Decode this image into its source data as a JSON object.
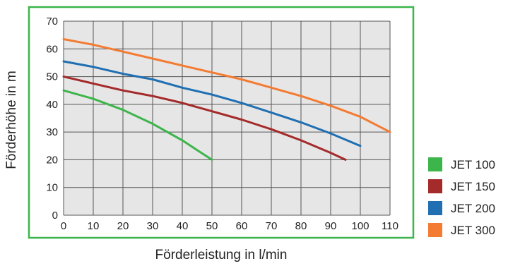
{
  "chart_data": {
    "type": "line",
    "xlabel": "Förderleistung in l/min",
    "ylabel": "Förderhöhe in m",
    "xlim": [
      0,
      110
    ],
    "ylim": [
      0,
      70
    ],
    "x_ticks": [
      "0",
      "10",
      "20",
      "30",
      "40",
      "50",
      "60",
      "70",
      "80",
      "90",
      "100",
      "110"
    ],
    "y_ticks": [
      "0",
      "10",
      "20",
      "30",
      "40",
      "50",
      "60",
      "70"
    ],
    "grid": true,
    "legend_position": "right",
    "frame_color": "#3cb54a",
    "series": [
      {
        "name": "JET 100",
        "color": "#3cb54a",
        "x": [
          0,
          10,
          20,
          30,
          40,
          45,
          50
        ],
        "y": [
          45,
          42,
          38,
          33,
          27,
          23.5,
          20
        ]
      },
      {
        "name": "JET 150",
        "color": "#a52a2a",
        "x": [
          0,
          10,
          20,
          30,
          40,
          50,
          60,
          70,
          80,
          90,
          95
        ],
        "y": [
          50,
          47.5,
          45,
          43,
          40.5,
          37.5,
          34.5,
          31,
          27,
          22.5,
          20
        ]
      },
      {
        "name": "JET 200",
        "color": "#1f6fb2",
        "x": [
          0,
          10,
          20,
          30,
          40,
          50,
          60,
          70,
          80,
          90,
          100
        ],
        "y": [
          55.5,
          53.5,
          51,
          49,
          46,
          43.5,
          40.5,
          37,
          33.5,
          29.5,
          25
        ]
      },
      {
        "name": "JET 300",
        "color": "#f37b32",
        "x": [
          0,
          10,
          20,
          30,
          40,
          50,
          60,
          70,
          80,
          90,
          100,
          110
        ],
        "y": [
          63.5,
          61.5,
          59,
          56.5,
          54,
          51.5,
          49,
          46,
          43,
          39.5,
          35.5,
          30
        ]
      }
    ]
  }
}
